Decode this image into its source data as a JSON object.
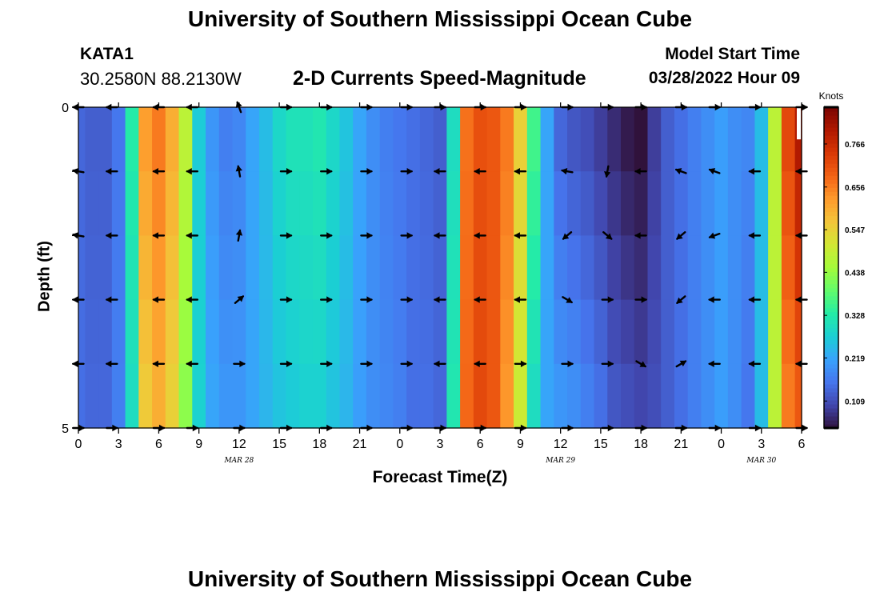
{
  "page": {
    "title_top": "University of Southern Mississippi Ocean Cube",
    "title_bottom": "University of Southern Mississippi Ocean Cube",
    "station_id": "KATA1",
    "station_coords": "30.2580N  88.2130W",
    "subtitle": "2-D Currents Speed-Magnitude",
    "model_start_label": "Model Start Time",
    "model_start_value": "03/28/2022 Hour 09"
  },
  "chart_data": {
    "type": "heatmap",
    "title": "2-D Currents Speed-Magnitude",
    "xlabel": "Forecast Time(Z)",
    "ylabel": "Depth (ft)",
    "x_tick_labels": [
      "0",
      "3",
      "6",
      "9",
      "12",
      "15",
      "18",
      "21",
      "0",
      "3",
      "6",
      "9",
      "12",
      "15",
      "18",
      "21",
      "0",
      "3",
      "6"
    ],
    "x_range_hours": [
      0,
      54
    ],
    "y_tick_labels": [
      "0",
      "5"
    ],
    "y_range_ft": [
      0,
      5
    ],
    "date_labels": [
      {
        "text": "MAR 28",
        "hour": 12
      },
      {
        "text": "MAR 29",
        "hour": 36
      },
      {
        "text": "MAR 30",
        "hour": 51
      }
    ],
    "colorbar": {
      "label": "Knots",
      "tick_labels": [
        "0.109",
        "0.219",
        "0.328",
        "0.438",
        "0.547",
        "0.656",
        "0.766"
      ],
      "tick_values": [
        0.109,
        0.219,
        0.328,
        0.438,
        0.547,
        0.656,
        0.766
      ],
      "range": [
        0.04,
        0.86
      ],
      "palette": [
        "#30123b",
        "#4145ab",
        "#4675ed",
        "#39a2fc",
        "#1bcfd4",
        "#24eca6",
        "#61fc6c",
        "#a4fc3b",
        "#d1e834",
        "#f3c63a",
        "#fe9b2d",
        "#f36315",
        "#d93806",
        "#b11901",
        "#7a0402"
      ]
    },
    "hours": [
      0,
      1,
      2,
      3,
      4,
      5,
      6,
      7,
      8,
      9,
      10,
      11,
      12,
      13,
      14,
      15,
      16,
      17,
      18,
      19,
      20,
      21,
      22,
      23,
      24,
      25,
      26,
      27,
      28,
      29,
      30,
      31,
      32,
      33,
      34,
      35,
      36,
      37,
      38,
      39,
      40,
      41,
      42,
      43,
      44,
      45,
      46,
      47,
      48,
      49,
      50,
      51,
      52,
      53,
      54
    ],
    "surface_speed_knots": [
      0.14,
      0.13,
      0.13,
      0.16,
      0.33,
      0.62,
      0.66,
      0.6,
      0.48,
      0.27,
      0.2,
      0.17,
      0.18,
      0.22,
      0.25,
      0.29,
      0.31,
      0.31,
      0.32,
      0.29,
      0.26,
      0.22,
      0.19,
      0.17,
      0.16,
      0.15,
      0.14,
      0.13,
      0.3,
      0.67,
      0.71,
      0.7,
      0.66,
      0.55,
      0.36,
      0.22,
      0.14,
      0.12,
      0.11,
      0.09,
      0.07,
      0.05,
      0.04,
      0.09,
      0.13,
      0.15,
      0.17,
      0.19,
      0.21,
      0.19,
      0.18,
      0.25,
      0.48,
      0.72,
      0.8
    ],
    "bottom_speed_knots": [
      0.15,
      0.14,
      0.14,
      0.17,
      0.3,
      0.56,
      0.6,
      0.55,
      0.43,
      0.28,
      0.22,
      0.2,
      0.2,
      0.22,
      0.24,
      0.26,
      0.27,
      0.28,
      0.28,
      0.26,
      0.24,
      0.21,
      0.19,
      0.18,
      0.17,
      0.15,
      0.15,
      0.14,
      0.32,
      0.68,
      0.72,
      0.7,
      0.63,
      0.5,
      0.3,
      0.22,
      0.2,
      0.19,
      0.17,
      0.15,
      0.12,
      0.11,
      0.1,
      0.11,
      0.13,
      0.15,
      0.17,
      0.19,
      0.21,
      0.19,
      0.16,
      0.25,
      0.48,
      0.66,
      0.7
    ],
    "arrow_depth_levels_ft": [
      0,
      1,
      2,
      3,
      4,
      5
    ],
    "arrow_hours": [
      0,
      2.5,
      6,
      8.5,
      12,
      15.5,
      18.5,
      21.5,
      24.5,
      27,
      30,
      33,
      36.5,
      39.5,
      42,
      45,
      47.5,
      50.5,
      54
    ],
    "arrow_angles_deg": [
      [
        180,
        180,
        180,
        180,
        110,
        0,
        0,
        0,
        0,
        0,
        0,
        0,
        0,
        0,
        0,
        0,
        0,
        0,
        0
      ],
      [
        170,
        180,
        180,
        180,
        100,
        0,
        0,
        0,
        0,
        180,
        180,
        180,
        170,
        260,
        180,
        160,
        160,
        180,
        180
      ],
      [
        170,
        180,
        180,
        180,
        80,
        0,
        0,
        0,
        0,
        180,
        180,
        180,
        220,
        320,
        180,
        220,
        200,
        180,
        180
      ],
      [
        180,
        180,
        180,
        180,
        40,
        0,
        0,
        0,
        0,
        180,
        180,
        180,
        330,
        0,
        0,
        220,
        180,
        180,
        180
      ],
      [
        180,
        180,
        180,
        180,
        0,
        0,
        0,
        0,
        0,
        180,
        180,
        0,
        0,
        0,
        330,
        30,
        180,
        180,
        180
      ],
      [
        0,
        0,
        0,
        0,
        0,
        0,
        0,
        0,
        0,
        0,
        0,
        0,
        0,
        0,
        0,
        0,
        0,
        0,
        0
      ]
    ]
  }
}
